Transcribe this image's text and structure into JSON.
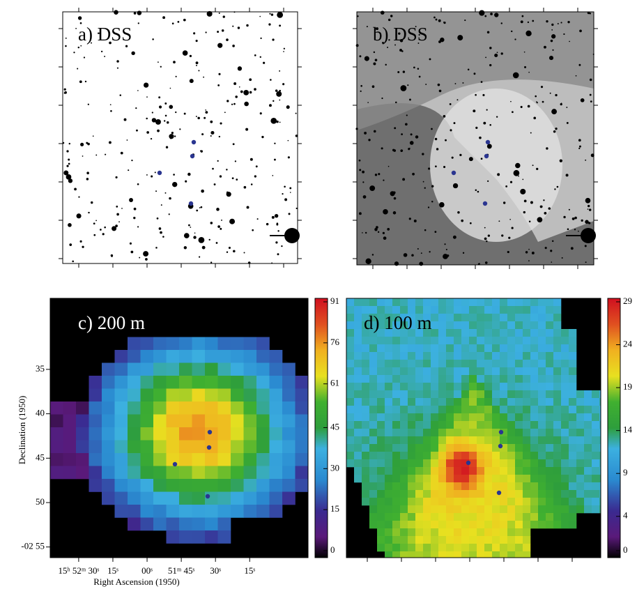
{
  "panels": [
    {
      "label": "a) DSS"
    },
    {
      "label": "b) DSS"
    },
    {
      "label": "c) 200   m",
      "colorbar_ticks": [
        0,
        15,
        30,
        45,
        61,
        76,
        91
      ]
    },
    {
      "label": "d) 100   m",
      "colorbar_ticks": [
        0,
        4,
        9,
        14,
        19,
        24,
        29
      ]
    }
  ],
  "axes": {
    "ylabel": "Declination (1950)",
    "xlabel": "Right Ascension (1950)",
    "yticks": [
      35,
      40,
      45,
      50,
      {
        "value": 55,
        "label": "-02 55"
      }
    ],
    "ylim": [
      27,
      56.2
    ],
    "xticks": [
      {
        "value": 90,
        "label": "15ʰ 52ᵐ 30ˢ"
      },
      {
        "value": 75,
        "label": "15ˢ"
      },
      {
        "value": 60,
        "label": "00ˢ"
      },
      {
        "value": 45,
        "label": "51ᵐ 45ˢ"
      },
      {
        "value": 30,
        "label": "30ˢ"
      },
      {
        "value": 15,
        "label": "15ˢ"
      }
    ],
    "xlim": [
      102.5,
      -10.6
    ]
  }
}
